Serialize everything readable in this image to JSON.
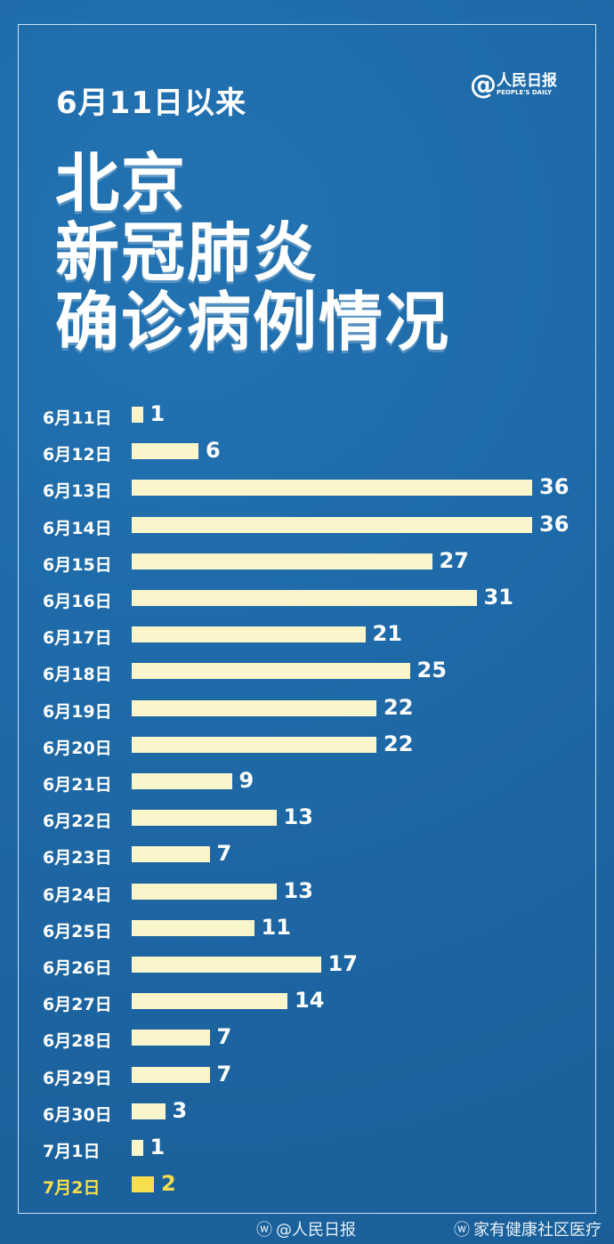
{
  "header": {
    "subtitle": "6月11日以来",
    "title_lines": [
      "北京",
      "新冠肺炎",
      "确诊病例情况"
    ]
  },
  "logo": {
    "at": "@",
    "name_cn": "人民日报",
    "name_en": "PEOPLE'S DAILY"
  },
  "chart_data": {
    "type": "bar",
    "orientation": "horizontal",
    "categories": [
      "6月11日",
      "6月12日",
      "6月13日",
      "6月14日",
      "6月15日",
      "6月16日",
      "6月17日",
      "6月18日",
      "6月19日",
      "6月20日",
      "6月21日",
      "6月22日",
      "6月23日",
      "6月24日",
      "6月25日",
      "6月26日",
      "6月27日",
      "6月28日",
      "6月29日",
      "6月30日",
      "7月1日",
      "7月2日"
    ],
    "values": [
      1,
      6,
      36,
      36,
      27,
      31,
      21,
      25,
      22,
      22,
      9,
      13,
      7,
      13,
      11,
      17,
      14,
      7,
      7,
      3,
      1,
      2
    ],
    "highlight_category": "7月2日",
    "colors": {
      "bar": "#fbf5cc",
      "highlight": "#f7de4d",
      "background": "#1f68a6"
    }
  },
  "footer": {
    "credits": [
      "@人民日报",
      "家有健康社区医疗"
    ]
  }
}
